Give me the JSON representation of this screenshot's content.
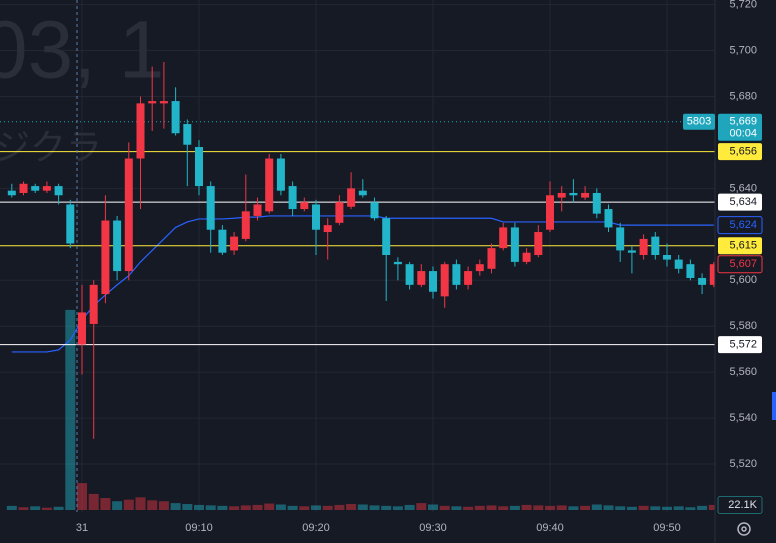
{
  "chart_data": {
    "type": "candlestick",
    "watermark": [
      "03, 1",
      "ジクラ"
    ],
    "categories": [
      null,
      null,
      null,
      null,
      null,
      null,
      "31",
      null,
      null,
      null,
      null,
      null,
      null,
      null,
      null,
      null,
      "09:10",
      null,
      null,
      null,
      null,
      null,
      null,
      null,
      null,
      null,
      "09:20",
      null,
      null,
      null,
      null,
      null,
      null,
      null,
      null,
      null,
      "09:30",
      null,
      null,
      null,
      null,
      null,
      null,
      null,
      null,
      null,
      "09:40",
      null,
      null,
      null,
      null,
      null,
      null,
      null,
      null,
      null,
      "09:50",
      null,
      null,
      null,
      null
    ],
    "open": [
      5639,
      5638,
      5641,
      5639,
      5641,
      5633,
      5572,
      5581,
      5594,
      5626,
      5604,
      5653,
      5677,
      5677,
      5678,
      5668,
      5658,
      5641,
      5622,
      5613,
      5618,
      5628,
      5630,
      5653,
      5641,
      5631,
      5633,
      5621,
      5625,
      5632,
      5639,
      5634,
      5627,
      5608,
      5607,
      5598,
      5604,
      5593,
      5607,
      5598,
      5604,
      5605,
      5614,
      5623,
      5608,
      5611,
      5622,
      5636,
      5638,
      5636,
      5638,
      5631,
      5623,
      5613,
      5611,
      5619,
      5611,
      5609,
      5607,
      5601,
      5598
    ],
    "high": [
      5642,
      5643,
      5642,
      5643,
      5642,
      5635,
      5598,
      5600,
      5637,
      5628,
      5660,
      5680,
      5693,
      5695,
      5684,
      5670,
      5661,
      5643,
      5624,
      5621,
      5646,
      5636,
      5655,
      5655,
      5643,
      5636,
      5635,
      5627,
      5637,
      5647,
      5644,
      5636,
      5628,
      5610,
      5608,
      5607,
      5606,
      5608,
      5609,
      5606,
      5609,
      5616,
      5625,
      5625,
      5614,
      5624,
      5643,
      5641,
      5644,
      5641,
      5640,
      5633,
      5625,
      5615,
      5620,
      5621,
      5616,
      5611,
      5609,
      5603,
      5608
    ],
    "low": [
      5636,
      5637,
      5638,
      5638,
      5633,
      5614,
      5559,
      5531,
      5590,
      5600,
      5600,
      5631,
      5665,
      5666,
      5663,
      5641,
      5637,
      5612,
      5611,
      5611,
      5617,
      5626,
      5629,
      5637,
      5628,
      5630,
      5611,
      5609,
      5624,
      5631,
      5636,
      5626,
      5591,
      5600,
      5596,
      5597,
      5592,
      5588,
      5596,
      5596,
      5602,
      5603,
      5613,
      5606,
      5607,
      5610,
      5621,
      5630,
      5634,
      5635,
      5627,
      5621,
      5608,
      5603,
      5609,
      5609,
      5606,
      5603,
      5600,
      5594,
      5597
    ],
    "close": [
      5637,
      5642,
      5639,
      5641,
      5637,
      5616,
      5586,
      5598,
      5626,
      5604,
      5653,
      5677,
      5678,
      5678,
      5664,
      5659,
      5641,
      5622,
      5612,
      5619,
      5630,
      5633,
      5653,
      5639,
      5631,
      5634,
      5622,
      5624,
      5634,
      5640,
      5637,
      5627,
      5611,
      5607,
      5598,
      5604,
      5595,
      5607,
      5598,
      5604,
      5607,
      5614,
      5623,
      5608,
      5612,
      5621,
      5637,
      5638,
      5637,
      5638,
      5629,
      5623,
      5613,
      5612,
      5618,
      5611,
      5609,
      5605,
      5601,
      5598,
      5607
    ],
    "up_color": "#f23645",
    "down_color": "#22b5c9",
    "volume": [
      18,
      12,
      16,
      10,
      14,
      870,
      117,
      70,
      52,
      38,
      45,
      55,
      42,
      38,
      30,
      26,
      22,
      20,
      18,
      16,
      20,
      22,
      28,
      24,
      18,
      16,
      20,
      18,
      22,
      26,
      24,
      20,
      18,
      16,
      22,
      30,
      24,
      18,
      16,
      14,
      18,
      20,
      16,
      18,
      22,
      20,
      18,
      20,
      16,
      18,
      24,
      20,
      16,
      14,
      18,
      16,
      14,
      16,
      12,
      18,
      22.1
    ],
    "vlim": [
      0,
      1000
    ],
    "volume_label": "22.1K",
    "vwap": {
      "color": "#2962ff",
      "value": 5624,
      "label": "5,624",
      "values": [
        5568.8,
        5568.8,
        5568.8,
        5568.8,
        5569.7,
        5574,
        5582.7,
        5589,
        5593.6,
        5598,
        5602,
        5608,
        5613,
        5618,
        5623,
        5625.4,
        5626.7,
        5626.7,
        5626.7,
        5627,
        5627.5,
        5627.5,
        5628,
        5628,
        5628,
        5628,
        5628,
        5628,
        5628,
        5628,
        5628,
        5628,
        5627,
        5627,
        5627,
        5627,
        5627,
        5627,
        5627,
        5627,
        5627,
        5627,
        5625.4,
        5625.4,
        5625.4,
        5625.4,
        5625.4,
        5625.4,
        5625.4,
        5625.4,
        5625.4,
        5625.4,
        5624,
        5624,
        5624,
        5624,
        5624,
        5624,
        5624,
        5624,
        5624
      ]
    },
    "hlines": [
      {
        "value": 5656,
        "label": "5,656",
        "color": "#ffeb3b"
      },
      {
        "value": 5634,
        "label": "5,634",
        "color": "#ffffff"
      },
      {
        "value": 5615,
        "label": "5,615",
        "color": "#ffeb3b"
      },
      {
        "value": 5572,
        "label": "5,572",
        "color": "#ffffff"
      }
    ],
    "last_price": {
      "value": 5669,
      "label": "5,669",
      "countdown": "00:04",
      "tag": "5803",
      "color": "#1fa6bd"
    },
    "current": {
      "value": 5607,
      "label": "5,607",
      "color": "#f23645"
    },
    "ylim": [
      5500,
      5722
    ],
    "yticks": [
      {
        "value": 5720,
        "label": "5,720"
      },
      {
        "value": 5700,
        "label": "5,700"
      },
      {
        "value": 5680,
        "label": "5,680"
      },
      {
        "value": 5640,
        "label": "5,640"
      },
      {
        "value": 5600,
        "label": "5,600"
      },
      {
        "value": 5580,
        "label": "5,580"
      },
      {
        "value": 5560,
        "label": "5,560"
      },
      {
        "value": 5540,
        "label": "5,540"
      },
      {
        "value": 5520,
        "label": "5,520"
      }
    ],
    "grid": true
  }
}
